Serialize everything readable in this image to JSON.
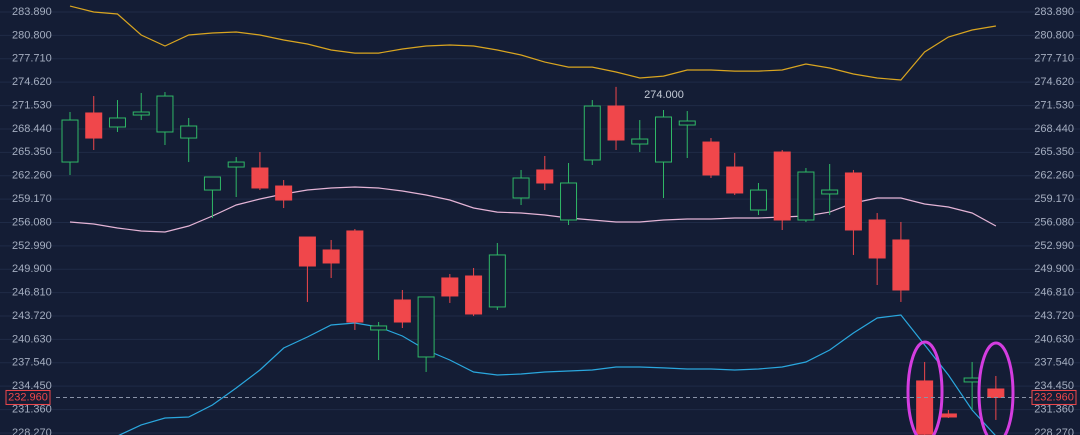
{
  "chart_data": {
    "type": "candlestick",
    "categories": [
      null,
      null,
      null,
      null,
      null,
      null,
      null,
      null,
      null,
      null,
      null,
      null,
      null,
      null,
      null,
      null,
      null,
      null,
      null,
      null,
      null,
      null,
      null,
      null,
      null,
      null,
      null,
      null,
      null,
      null,
      null,
      null,
      null,
      null,
      null,
      null,
      null,
      null,
      null,
      null
    ],
    "open": [
      264.07,
      270.55,
      268.7,
      270.28,
      268.04,
      267.24,
      260.37,
      263.41,
      263.28,
      260.9,
      254.16,
      252.45,
      254.96,
      241.88,
      245.84,
      238.31,
      248.75,
      249.01,
      244.92,
      259.32,
      263.02,
      256.41,
      264.34,
      271.47,
      266.45,
      264.07,
      268.96,
      266.71,
      263.41,
      257.73,
      265.39,
      256.41,
      259.85,
      262.62,
      256.41,
      253.77,
      235.14,
      230.78,
      235.01,
      234.08
    ],
    "high": [
      270.68,
      272.79,
      272.26,
      273.19,
      273.32,
      269.89,
      262.09,
      264.73,
      265.39,
      261.69,
      254.16,
      253.77,
      255.22,
      242.93,
      247.16,
      246.24,
      249.27,
      250.07,
      253.37,
      263.02,
      264.87,
      263.94,
      272.26,
      274.0,
      269.62,
      270.94,
      270.81,
      267.24,
      265.26,
      261.3,
      265.66,
      263.28,
      263.81,
      263.02,
      257.33,
      256.15,
      237.65,
      231.31,
      237.65,
      235.8
    ],
    "low": [
      262.36,
      265.66,
      268.04,
      269.62,
      266.32,
      264.07,
      256.67,
      259.45,
      260.37,
      257.99,
      245.58,
      248.75,
      241.88,
      237.91,
      242.14,
      236.33,
      245.45,
      243.73,
      244.52,
      258.39,
      260.37,
      255.75,
      263.68,
      265.66,
      265.39,
      259.32,
      264.6,
      261.96,
      259.71,
      257.07,
      255.09,
      256.15,
      257.07,
      251.79,
      247.82,
      245.58,
      228.0,
      230.25,
      231.31,
      229.99
    ],
    "close": [
      269.62,
      267.24,
      269.89,
      270.68,
      272.79,
      268.83,
      262.09,
      264.07,
      260.64,
      259.05,
      250.33,
      250.73,
      242.93,
      242.41,
      242.93,
      246.24,
      246.37,
      243.99,
      251.79,
      261.96,
      261.3,
      261.3,
      271.47,
      266.98,
      267.11,
      270.02,
      269.49,
      262.36,
      259.98,
      260.37,
      256.41,
      262.75,
      260.37,
      255.09,
      251.39,
      247.16,
      228.1,
      230.38,
      235.53,
      232.96
    ],
    "up_color": "#2fb866",
    "down_color": "#f0474b",
    "bands": [
      {
        "color": "#d9a520",
        "values": [
          284.68,
          283.89,
          283.63,
          280.85,
          279.4,
          280.85,
          281.12,
          281.25,
          280.85,
          280.19,
          279.66,
          278.87,
          278.47,
          278.47,
          279.0,
          279.4,
          279.53,
          279.4,
          278.87,
          278.21,
          277.28,
          276.62,
          276.62,
          275.96,
          275.17,
          275.43,
          276.23,
          276.23,
          276.09,
          276.09,
          276.23,
          277.02,
          276.49,
          275.7,
          275.17,
          274.91,
          278.61,
          280.59,
          281.51,
          282.04
        ]
      },
      {
        "color": "#e4b4d6",
        "values": [
          256.14,
          255.88,
          255.35,
          254.96,
          254.82,
          255.62,
          256.94,
          258.39,
          259.18,
          259.85,
          260.37,
          260.64,
          260.77,
          260.64,
          260.24,
          259.71,
          259.05,
          257.99,
          257.46,
          257.33,
          257.07,
          256.67,
          256.41,
          256.14,
          256.14,
          256.41,
          256.54,
          256.54,
          256.67,
          256.67,
          256.8,
          256.94,
          257.46,
          258.65,
          259.32,
          259.32,
          258.52,
          258.13,
          257.33,
          255.62
        ]
      },
      {
        "color": "#2aa7de",
        "values": [
          null,
          null,
          227.87,
          229.33,
          230.25,
          230.38,
          231.97,
          234.21,
          236.59,
          239.5,
          240.95,
          242.54,
          242.8,
          242.27,
          241.08,
          239.23,
          237.91,
          236.33,
          235.93,
          236.06,
          236.33,
          236.46,
          236.59,
          236.99,
          236.99,
          236.86,
          236.72,
          236.72,
          236.59,
          236.72,
          236.99,
          237.65,
          239.23,
          241.48,
          243.46,
          243.86,
          239.9,
          235.93,
          231.31,
          227.87
        ]
      }
    ],
    "ylim": [
      228.0,
      285.48
    ],
    "yticks": [
      {
        "value": 283.89,
        "label": "283.890"
      },
      {
        "value": 280.8,
        "label": "280.800"
      },
      {
        "value": 277.71,
        "label": "277.710"
      },
      {
        "value": 274.62,
        "label": "274.620"
      },
      {
        "value": 271.53,
        "label": "271.530"
      },
      {
        "value": 268.44,
        "label": "268.440"
      },
      {
        "value": 265.35,
        "label": "265.350"
      },
      {
        "value": 262.26,
        "label": "262.260"
      },
      {
        "value": 259.17,
        "label": "259.170"
      },
      {
        "value": 256.08,
        "label": "256.080"
      },
      {
        "value": 252.99,
        "label": "252.990"
      },
      {
        "value": 249.9,
        "label": "249.900"
      },
      {
        "value": 246.81,
        "label": "246.810"
      },
      {
        "value": 243.72,
        "label": "243.720"
      },
      {
        "value": 240.63,
        "label": "240.630"
      },
      {
        "value": 237.54,
        "label": "237.540"
      },
      {
        "value": 234.45,
        "label": "234.450"
      },
      {
        "value": 231.36,
        "label": "231.360"
      },
      {
        "value": 228.27,
        "label": "228.270"
      }
    ],
    "grid": true,
    "last_price": {
      "value": 232.96,
      "label": "232.960",
      "color": "#f0474b"
    },
    "annotation": {
      "value": 274,
      "label": "274.000"
    }
  }
}
